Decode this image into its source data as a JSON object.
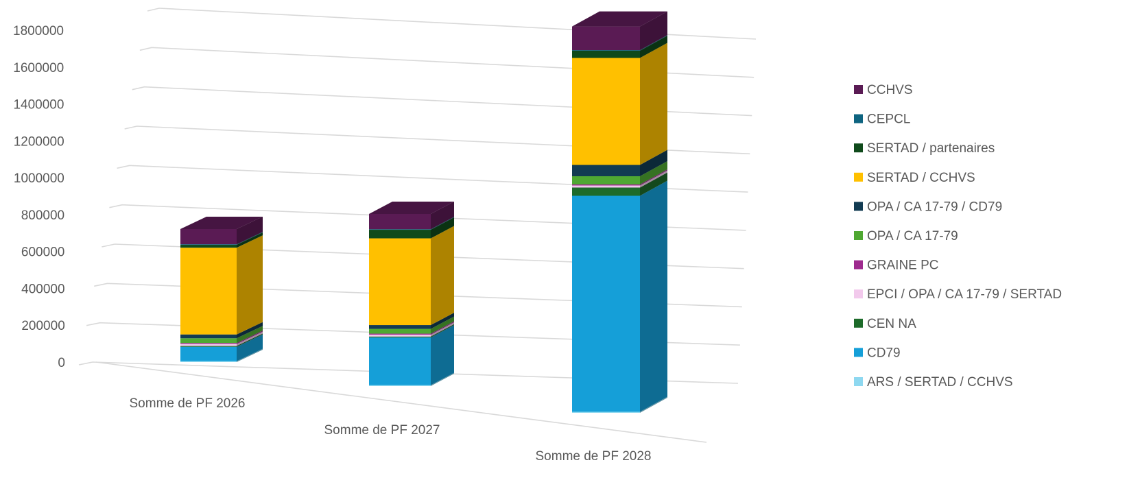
{
  "chart_data": {
    "type": "bar",
    "subtype": "3d-stacked-column",
    "title": "",
    "xlabel": "",
    "ylabel": "",
    "ylim": [
      0,
      1800000
    ],
    "yticks": [
      "0",
      "200000",
      "400000",
      "600000",
      "800000",
      "1000000",
      "1200000",
      "1400000",
      "1600000",
      "1800000"
    ],
    "grid": true,
    "legend_position": "right",
    "categories": [
      "Somme de PF 2026",
      "Somme de PF 2027",
      "Somme de PF 2028"
    ],
    "series": [
      {
        "name": "ARS / SERTAD / CCHVS",
        "color": "#8ED8F0",
        "values": [
          5000,
          5000,
          5000
        ]
      },
      {
        "name": "CD79",
        "color": "#159FD8",
        "values": [
          75000,
          250000,
          1050000
        ]
      },
      {
        "name": "CEN NA",
        "color": "#1D6B2A",
        "values": [
          5000,
          5000,
          40000
        ]
      },
      {
        "name": "EPCI / OPA / CA 17-79 / SERTAD",
        "color": "#F2C9EC",
        "values": [
          10000,
          10000,
          10000
        ]
      },
      {
        "name": "GRAINE PC",
        "color": "#9E2A8E",
        "values": [
          5000,
          5000,
          5000
        ]
      },
      {
        "name": "OPA / CA 17-79",
        "color": "#4FA832",
        "values": [
          25000,
          25000,
          40000
        ]
      },
      {
        "name": "OPA / CA 17-79 / CD79",
        "color": "#123B52",
        "values": [
          20000,
          20000,
          55000
        ]
      },
      {
        "name": "SERTAD / CCHVS",
        "color": "#FFC000",
        "values": [
          455000,
          455000,
          520000
        ]
      },
      {
        "name": "SERTAD / partenaires",
        "color": "#0F4A1B",
        "values": [
          15000,
          45000,
          35000
        ]
      },
      {
        "name": "CEPCL",
        "color": "#0E6480",
        "values": [
          3000,
          3000,
          3000
        ]
      },
      {
        "name": "CCHVS",
        "color": "#5A1B54",
        "values": [
          80000,
          80000,
          115000
        ]
      }
    ]
  }
}
